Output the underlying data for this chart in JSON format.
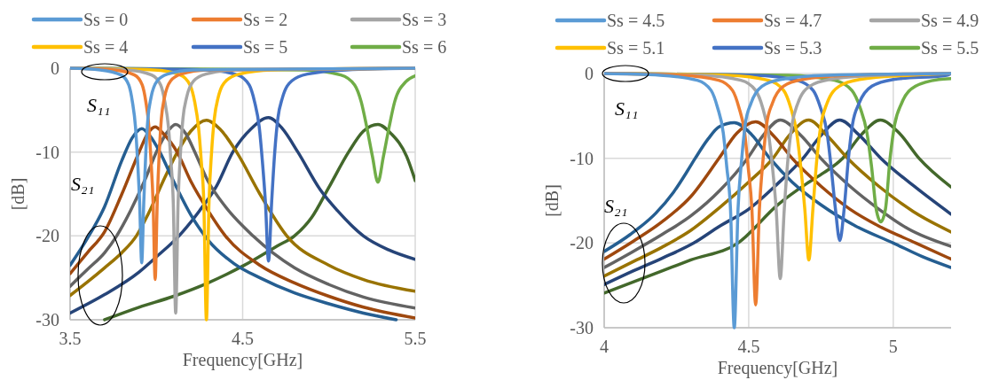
{
  "chart_data": [
    {
      "type": "line",
      "xlabel": "Frequency[GHz]",
      "ylabel": "[dB]",
      "xlim": [
        3.5,
        5.5
      ],
      "xticks": [
        3.5,
        4.5,
        5.5
      ],
      "ylim": [
        -30,
        0
      ],
      "yticks": [
        -30,
        -20,
        -10,
        0
      ],
      "grid": true,
      "legend": "top",
      "annotations": [
        "S₁₁",
        "S₂₁"
      ],
      "series": [
        {
          "name": "Ss = 0",
          "color": "#5b9bd5",
          "x": [
            3.5,
            3.675,
            3.795,
            3.84,
            3.861,
            3.879,
            3.891,
            3.903,
            3.915,
            3.927,
            3.939,
            3.951,
            3.969,
            4.005,
            4.065,
            4.215,
            5.5
          ],
          "values": [
            0,
            -0.2,
            -0.8,
            -2,
            -4,
            -7,
            -11,
            -16,
            -23.2,
            -16,
            -10,
            -6,
            -3.5,
            -1.5,
            -0.7,
            -0.2,
            0
          ]
        },
        {
          "name": "Ss = 2",
          "color": "#ed7d31",
          "x": [
            3.5,
            3.753,
            3.873,
            3.918,
            3.939,
            3.957,
            3.969,
            3.981,
            3.993,
            4.005,
            4.017,
            4.029,
            4.047,
            4.083,
            4.143,
            4.293,
            5.5
          ],
          "values": [
            0,
            -0.2,
            -0.8,
            -2,
            -4,
            -7,
            -11,
            -16,
            -25.2,
            -16,
            -10,
            -6,
            -3.5,
            -1.5,
            -0.7,
            -0.2,
            0
          ]
        },
        {
          "name": "Ss = 3",
          "color": "#a5a5a5",
          "x": [
            3.5,
            3.832,
            3.972,
            4.025,
            4.049,
            4.07,
            4.084,
            4.098,
            4.112,
            4.126,
            4.14,
            4.154,
            4.175,
            4.217,
            4.287,
            4.462,
            5.5
          ],
          "values": [
            0,
            -0.2,
            -0.8,
            -2,
            -4,
            -7,
            -11,
            -16,
            -29.2,
            -16,
            -10,
            -6,
            -3.5,
            -1.5,
            -0.7,
            -0.2,
            0
          ]
        },
        {
          "name": "Ss = 4",
          "color": "#ffc000",
          "x": [
            3.5,
            3.986,
            4.138,
            4.195,
            4.222,
            4.244,
            4.26,
            4.275,
            4.29,
            4.305,
            4.32,
            4.336,
            4.358,
            4.404,
            4.48,
            4.67,
            5.5
          ],
          "values": [
            0,
            -0.2,
            -0.8,
            -2,
            -4,
            -7,
            -11,
            -16,
            -30,
            -16,
            -10,
            -6,
            -3.5,
            -1.5,
            -0.7,
            -0.2,
            0
          ]
        },
        {
          "name": "Ss = 5",
          "color": "#4472c4",
          "x": [
            3.5,
            4.29,
            4.47,
            4.538,
            4.569,
            4.596,
            4.614,
            4.632,
            4.65,
            4.668,
            4.686,
            4.704,
            4.731,
            4.785,
            4.875,
            5.1,
            5.5
          ],
          "values": [
            0,
            -0.2,
            -0.8,
            -2,
            -4,
            -7,
            -11,
            -16,
            -23,
            -16,
            -10,
            -6,
            -3.5,
            -1.5,
            -0.7,
            -0.2,
            0
          ]
        },
        {
          "name": "Ss = 6",
          "color": "#70ad47",
          "x": [
            3.5,
            4.852,
            5.068,
            5.149,
            5.187,
            5.219,
            5.252,
            5.284,
            5.316,
            5.349,
            5.381,
            5.446,
            5.5
          ],
          "values": [
            0,
            -0.2,
            -0.8,
            -2,
            -4,
            -7,
            -10.5,
            -13.6,
            -10.5,
            -7,
            -4,
            -1.6,
            -0.9
          ]
        },
        {
          "color": "#255e91",
          "x": [
            3.5,
            3.6,
            3.7,
            3.8,
            3.86,
            3.916,
            3.96,
            4.02,
            4.1,
            4.2,
            4.3,
            4.45,
            4.6,
            4.8,
            5.0,
            5.2,
            5.39
          ],
          "values": [
            -23.5,
            -20.3,
            -16.5,
            -11,
            -8.3,
            -7.2,
            -8,
            -10,
            -13.5,
            -17.5,
            -20.5,
            -23.3,
            -25,
            -26.8,
            -28.1,
            -29.2,
            -30
          ]
        },
        {
          "color": "#9e480e",
          "x": [
            3.5,
            3.6,
            3.7,
            3.8,
            3.9,
            3.95,
            3.993,
            4.04,
            4.12,
            4.2,
            4.3,
            4.4,
            4.6,
            4.8,
            5.0,
            5.2,
            5.5
          ],
          "values": [
            -24.5,
            -22,
            -19.5,
            -15,
            -10,
            -7.8,
            -7,
            -7.8,
            -10,
            -13.5,
            -17,
            -20,
            -23.5,
            -25.6,
            -27.2,
            -28.5,
            -29.8
          ]
        },
        {
          "color": "#636363",
          "x": [
            3.5,
            3.6,
            3.7,
            3.77,
            3.85,
            3.93,
            4.0,
            4.06,
            4.112,
            4.17,
            4.223,
            4.3,
            4.4,
            4.56,
            4.8,
            5.0,
            5.2,
            5.5
          ],
          "values": [
            -26,
            -24,
            -22,
            -20,
            -17,
            -13.5,
            -10,
            -7.7,
            -6.7,
            -7.8,
            -10,
            -13.5,
            -16.5,
            -20,
            -23.8,
            -25.8,
            -27.3,
            -28.6
          ]
        },
        {
          "color": "#997300",
          "x": [
            3.5,
            3.6,
            3.7,
            3.8,
            3.884,
            3.95,
            4.05,
            4.122,
            4.2,
            4.29,
            4.37,
            4.465,
            4.6,
            4.756,
            5.0,
            5.2,
            5.5
          ],
          "values": [
            -27.1,
            -25.5,
            -23.8,
            -22,
            -20,
            -17.5,
            -13,
            -10,
            -7.5,
            -6.2,
            -7.3,
            -10,
            -15,
            -20,
            -23.5,
            -25.2,
            -26.6
          ]
        },
        {
          "color": "#264478",
          "x": [
            3.5,
            3.7,
            3.9,
            4.0,
            4.131,
            4.25,
            4.35,
            4.443,
            4.55,
            4.65,
            4.73,
            4.82,
            4.95,
            5.05,
            5.2,
            5.35,
            5.5
          ],
          "values": [
            -29.2,
            -27,
            -24.3,
            -22.5,
            -20,
            -17,
            -14,
            -10,
            -7.2,
            -5.9,
            -7.2,
            -10,
            -14.5,
            -17,
            -20,
            -21.7,
            -22.8
          ]
        },
        {
          "color": "#43682b",
          "x": [
            3.7,
            3.9,
            4.1,
            4.3,
            4.5,
            4.7,
            4.8,
            4.9,
            5.0,
            5.114,
            5.2,
            5.284,
            5.36,
            5.45,
            5.5
          ],
          "values": [
            -30,
            -28.5,
            -27.2,
            -25.6,
            -23.6,
            -21.2,
            -20,
            -17.8,
            -14.2,
            -10,
            -7.5,
            -6.7,
            -7.8,
            -10.5,
            -13.4
          ]
        }
      ]
    },
    {
      "type": "line",
      "xlabel": "Frequency[GHz]",
      "ylabel": "[dB]",
      "xlim": [
        4,
        5.2
      ],
      "xticks": [
        4,
        4.5,
        5
      ],
      "ylim": [
        -30,
        0
      ],
      "yticks": [
        -30,
        -20,
        -10,
        0
      ],
      "grid": true,
      "legend": "top",
      "annotations": [
        "S₁₁",
        "S₂₁"
      ],
      "series": [
        {
          "name": "Ss = 4.5",
          "color": "#5b9bd5",
          "x": [
            4.0,
            4.194,
            4.322,
            4.37,
            4.392,
            4.412,
            4.424,
            4.437,
            4.45,
            4.463,
            4.476,
            4.488,
            4.508,
            4.546,
            4.61,
            4.77,
            5.2
          ],
          "values": [
            0,
            -0.2,
            -0.8,
            -2,
            -4,
            -7,
            -11,
            -16,
            -30,
            -16,
            -10,
            -6,
            -3.5,
            -1.5,
            -0.7,
            -0.2,
            0
          ]
        },
        {
          "name": "Ss = 4.7",
          "color": "#ed7d31",
          "x": [
            4.0,
            4.268,
            4.396,
            4.444,
            4.466,
            4.486,
            4.498,
            4.511,
            4.524,
            4.537,
            4.55,
            4.562,
            4.582,
            4.62,
            4.684,
            4.844,
            5.2
          ],
          "values": [
            0,
            -0.2,
            -0.8,
            -2,
            -4,
            -7,
            -11,
            -16,
            -27.3,
            -16,
            -10,
            -6,
            -3.5,
            -1.5,
            -0.7,
            -0.2,
            0
          ]
        },
        {
          "name": "Ss = 4.9",
          "color": "#a5a5a5",
          "x": [
            4.0,
            4.337,
            4.473,
            4.524,
            4.548,
            4.568,
            4.582,
            4.595,
            4.609,
            4.623,
            4.636,
            4.65,
            4.67,
            4.711,
            4.779,
            4.949,
            5.2
          ],
          "values": [
            0,
            -0.2,
            -0.8,
            -2,
            -4,
            -7,
            -11,
            -16,
            -24.2,
            -16,
            -10,
            -6,
            -3.5,
            -1.5,
            -0.7,
            -0.2,
            0
          ]
        },
        {
          "name": "Ss = 5.1",
          "color": "#ffc000",
          "x": [
            4.0,
            4.428,
            4.568,
            4.621,
            4.645,
            4.666,
            4.68,
            4.694,
            4.708,
            4.722,
            4.736,
            4.75,
            4.771,
            4.813,
            4.883,
            5.058,
            5.2
          ],
          "values": [
            0,
            -0.2,
            -0.8,
            -2,
            -4,
            -7,
            -11,
            -16,
            -22,
            -16,
            -10,
            -6,
            -3.5,
            -1.5,
            -0.7,
            -0.2,
            0
          ]
        },
        {
          "name": "Ss = 5.3",
          "color": "#4472c4",
          "x": [
            4.0,
            4.519,
            4.667,
            4.723,
            4.748,
            4.771,
            4.785,
            4.8,
            4.815,
            4.83,
            4.845,
            4.859,
            4.882,
            4.926,
            5.0,
            5.185,
            5.2
          ],
          "values": [
            0,
            -0.2,
            -0.8,
            -2,
            -4,
            -7,
            -11,
            -16,
            -19.7,
            -16,
            -10,
            -6,
            -3.5,
            -1.5,
            -0.7,
            -0.2,
            0
          ]
        },
        {
          "name": "Ss = 5.5",
          "color": "#70ad47",
          "x": [
            4.0,
            4.637,
            4.797,
            4.857,
            4.885,
            4.909,
            4.925,
            4.941,
            4.957,
            4.973,
            4.989,
            5.005,
            5.029,
            5.077,
            5.157,
            5.2
          ],
          "values": [
            0,
            -0.2,
            -0.8,
            -2,
            -4,
            -7,
            -11,
            -16,
            -17.5,
            -16,
            -10,
            -6,
            -3.5,
            -1.5,
            -0.7,
            -0.6
          ]
        },
        {
          "color": "#255e91",
          "x": [
            4.0,
            4.09,
            4.178,
            4.24,
            4.288,
            4.315,
            4.36,
            4.397,
            4.45,
            4.51,
            4.573,
            4.65,
            4.75,
            4.87,
            5.0,
            5.1,
            5.2
          ],
          "values": [
            -21,
            -19,
            -16.5,
            -14,
            -11.5,
            -10,
            -7.7,
            -6.3,
            -5.8,
            -7.2,
            -10,
            -12.8,
            -15.5,
            -18,
            -20,
            -21.6,
            -22.9
          ]
        },
        {
          "color": "#9e480e",
          "x": [
            4.0,
            4.1,
            4.2,
            4.3,
            4.397,
            4.46,
            4.524,
            4.59,
            4.65,
            4.75,
            4.85,
            4.95,
            5.078,
            5.2
          ],
          "values": [
            -21.9,
            -19.8,
            -17.5,
            -14.5,
            -10,
            -7,
            -5.7,
            -7.5,
            -10,
            -13.3,
            -16,
            -18,
            -20,
            -21.9
          ]
        },
        {
          "color": "#636363",
          "x": [
            4.0,
            4.1,
            4.2,
            4.3,
            4.4,
            4.496,
            4.55,
            4.609,
            4.68,
            4.749,
            4.85,
            4.95,
            5.05,
            5.2
          ],
          "values": [
            -22.9,
            -21,
            -19,
            -16.8,
            -13.8,
            -10,
            -7.3,
            -5.5,
            -7.3,
            -10,
            -13.3,
            -16,
            -18.3,
            -20.4
          ]
        },
        {
          "color": "#997300",
          "x": [
            4.0,
            4.1,
            4.2,
            4.3,
            4.4,
            4.5,
            4.584,
            4.64,
            4.708,
            4.77,
            4.842,
            4.95,
            5.07,
            5.2
          ],
          "values": [
            -23.9,
            -22.2,
            -20.5,
            -18.5,
            -15.8,
            -12.8,
            -10,
            -7.3,
            -5.5,
            -7.3,
            -10,
            -13.3,
            -16.3,
            -18.7
          ]
        },
        {
          "color": "#264478",
          "x": [
            4.0,
            4.1,
            4.2,
            4.31,
            4.4,
            4.5,
            4.6,
            4.688,
            4.75,
            4.815,
            4.88,
            4.957,
            5.08,
            5.2
          ],
          "values": [
            -24.9,
            -23.3,
            -21.8,
            -20,
            -18,
            -16,
            -13,
            -10,
            -7.3,
            -5.5,
            -7.2,
            -10,
            -13.5,
            -16.6
          ]
        },
        {
          "color": "#43682b",
          "x": [
            4.0,
            4.1,
            4.2,
            4.3,
            4.463,
            4.6,
            4.7,
            4.76,
            4.825,
            4.89,
            4.955,
            5.02,
            5.089,
            5.2
          ],
          "values": [
            -25.9,
            -24.6,
            -23.3,
            -22,
            -20,
            -15.5,
            -13,
            -11.7,
            -10,
            -7.2,
            -5.5,
            -7,
            -10,
            -13.4
          ]
        }
      ]
    }
  ]
}
